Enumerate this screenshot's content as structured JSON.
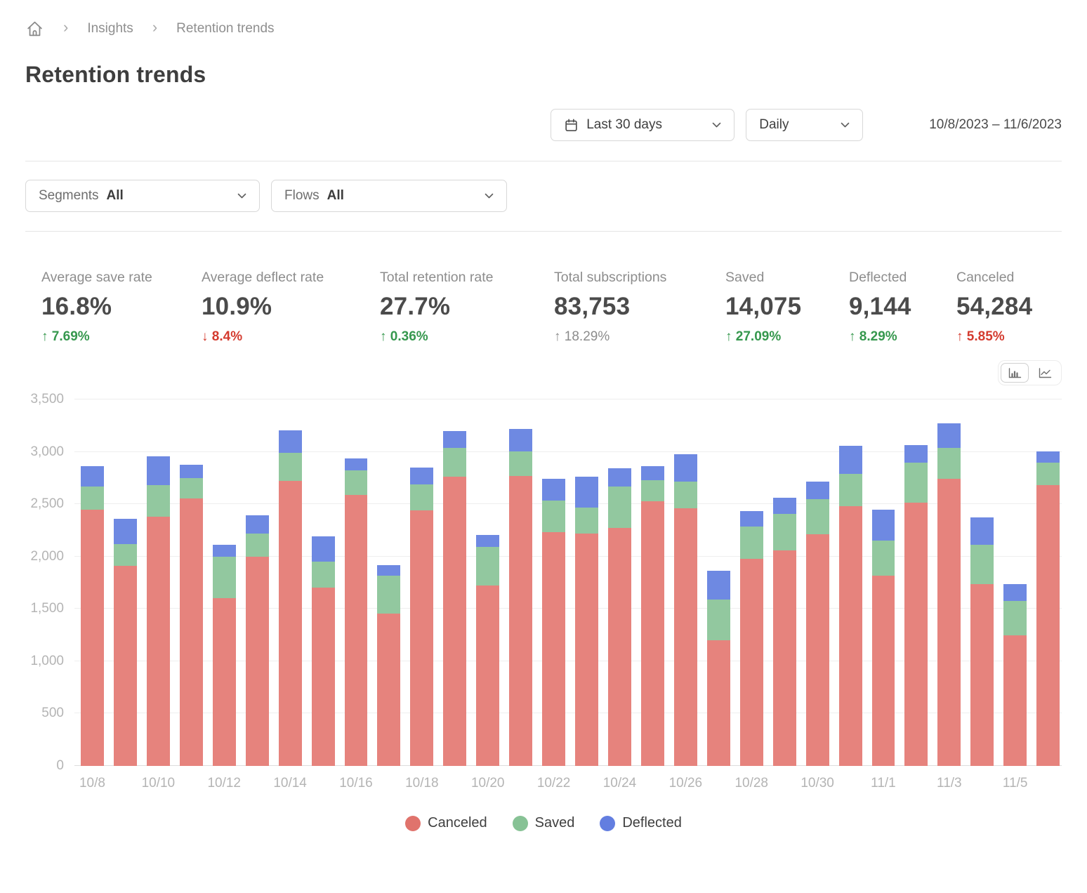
{
  "breadcrumb": {
    "items": [
      "Insights",
      "Retention trends"
    ]
  },
  "page": {
    "title": "Retention trends"
  },
  "filters": {
    "date_range_button": "Last 30 days",
    "granularity_button": "Daily",
    "date_range_text": "10/8/2023 – 11/6/2023",
    "segments_label": "Segments",
    "segments_value": "All",
    "flows_label": "Flows",
    "flows_value": "All"
  },
  "kpis": [
    {
      "label": "Average save rate",
      "value": "16.8%",
      "delta_text": "↑ 7.69%",
      "delta_color": "green"
    },
    {
      "label": "Average deflect rate",
      "value": "10.9%",
      "delta_text": "↓ 8.4%",
      "delta_color": "red"
    },
    {
      "label": "Total retention rate",
      "value": "27.7%",
      "delta_text": "↑ 0.36%",
      "delta_color": "green"
    },
    {
      "label": "Total subscriptions",
      "value": "83,753",
      "delta_text": "↑ 18.29%",
      "delta_color": "gray"
    },
    {
      "label": "Saved",
      "value": "14,075",
      "delta_text": "↑ 27.09%",
      "delta_color": "green"
    },
    {
      "label": "Deflected",
      "value": "9,144",
      "delta_text": "↑ 8.29%",
      "delta_color": "green"
    },
    {
      "label": "Canceled",
      "value": "54,284",
      "delta_text": "↑ 5.85%",
      "delta_color": "red"
    }
  ],
  "chart_data": {
    "type": "bar",
    "stacked": true,
    "categories": [
      "10/8",
      "10/9",
      "10/10",
      "10/11",
      "10/12",
      "10/13",
      "10/14",
      "10/15",
      "10/16",
      "10/17",
      "10/18",
      "10/19",
      "10/20",
      "10/21",
      "10/22",
      "10/23",
      "10/24",
      "10/25",
      "10/26",
      "10/27",
      "10/28",
      "10/29",
      "10/30",
      "10/31",
      "11/1",
      "11/2",
      "11/3",
      "11/4",
      "11/5",
      "11/6"
    ],
    "x_label_every": 2,
    "series": [
      {
        "name": "Canceled",
        "color": "#e0736c",
        "bar_color": "#e6837d",
        "values": [
          2450,
          1910,
          2380,
          2555,
          1600,
          2000,
          2720,
          1700,
          2585,
          1455,
          2440,
          2760,
          1725,
          2770,
          2230,
          2220,
          2270,
          2525,
          2460,
          1200,
          1975,
          2060,
          2215,
          2480,
          1820,
          2515,
          2740,
          1740,
          1250,
          2680
        ]
      },
      {
        "name": "Saved",
        "color": "#87c295",
        "bar_color": "#92c89f",
        "values": [
          220,
          210,
          300,
          195,
          400,
          220,
          270,
          250,
          240,
          360,
          250,
          275,
          370,
          235,
          305,
          250,
          400,
          205,
          255,
          390,
          310,
          345,
          330,
          310,
          335,
          385,
          300,
          375,
          325,
          215
        ]
      },
      {
        "name": "Deflected",
        "color": "#637ee0",
        "bar_color": "#6e89e2",
        "values": [
          190,
          240,
          275,
          130,
          110,
          175,
          215,
          240,
          115,
          105,
          160,
          165,
          110,
          215,
          205,
          290,
          170,
          130,
          265,
          275,
          150,
          155,
          170,
          265,
          290,
          165,
          235,
          260,
          160,
          110
        ]
      }
    ],
    "ylim": [
      0,
      3500
    ],
    "yticks": [
      0,
      500,
      1000,
      1500,
      2000,
      2500,
      3000,
      3500
    ],
    "grid": true,
    "legend": [
      "Canceled",
      "Saved",
      "Deflected"
    ],
    "legend_position": "bottom",
    "title": "",
    "xlabel": "",
    "ylabel": ""
  }
}
